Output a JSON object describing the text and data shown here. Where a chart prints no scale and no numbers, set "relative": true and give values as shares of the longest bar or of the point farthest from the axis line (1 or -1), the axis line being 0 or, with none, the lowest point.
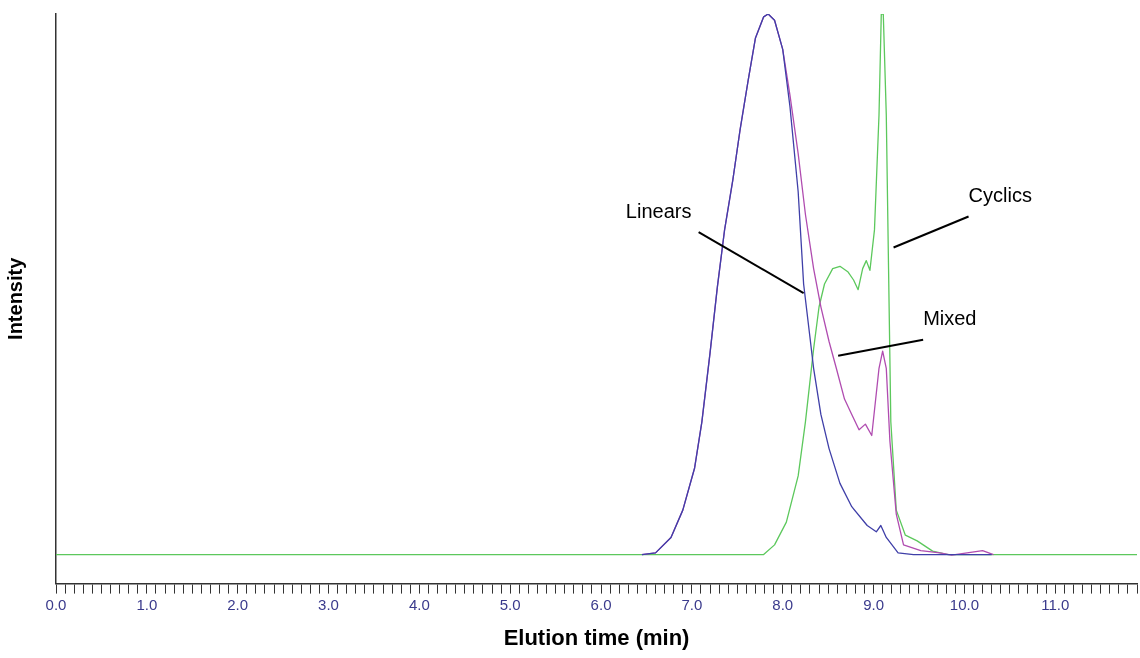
{
  "chart_data": {
    "type": "line",
    "xlabel": "Elution time (min)",
    "ylabel": "Intensity",
    "relative": true,
    "tick_labels": "x",
    "grid": false,
    "xlim": [
      0,
      11.9
    ],
    "xticks": [
      {
        "value": 0,
        "label": "0.0"
      },
      {
        "value": 0.1,
        "label": null
      },
      {
        "value": 0.2,
        "label": null
      },
      {
        "value": 0.3,
        "label": null
      },
      {
        "value": 0.4,
        "label": null
      },
      {
        "value": 0.5,
        "label": null
      },
      {
        "value": 0.6,
        "label": null
      },
      {
        "value": 0.7,
        "label": null
      },
      {
        "value": 0.8,
        "label": null
      },
      {
        "value": 0.9,
        "label": null
      },
      {
        "value": 1,
        "label": "1.0"
      },
      {
        "value": 1.1,
        "label": null
      },
      {
        "value": 1.2,
        "label": null
      },
      {
        "value": 1.3,
        "label": null
      },
      {
        "value": 1.4,
        "label": null
      },
      {
        "value": 1.5,
        "label": null
      },
      {
        "value": 1.6,
        "label": null
      },
      {
        "value": 1.7,
        "label": null
      },
      {
        "value": 1.8,
        "label": null
      },
      {
        "value": 1.9,
        "label": null
      },
      {
        "value": 2,
        "label": "2.0"
      },
      {
        "value": 2.1,
        "label": null
      },
      {
        "value": 2.2,
        "label": null
      },
      {
        "value": 2.3,
        "label": null
      },
      {
        "value": 2.4,
        "label": null
      },
      {
        "value": 2.5,
        "label": null
      },
      {
        "value": 2.6,
        "label": null
      },
      {
        "value": 2.7,
        "label": null
      },
      {
        "value": 2.8,
        "label": null
      },
      {
        "value": 2.9,
        "label": null
      },
      {
        "value": 3,
        "label": "3.0"
      },
      {
        "value": 3.1,
        "label": null
      },
      {
        "value": 3.2,
        "label": null
      },
      {
        "value": 3.3,
        "label": null
      },
      {
        "value": 3.4,
        "label": null
      },
      {
        "value": 3.5,
        "label": null
      },
      {
        "value": 3.6,
        "label": null
      },
      {
        "value": 3.7,
        "label": null
      },
      {
        "value": 3.8,
        "label": null
      },
      {
        "value": 3.9,
        "label": null
      },
      {
        "value": 4,
        "label": "4.0"
      },
      {
        "value": 4.1,
        "label": null
      },
      {
        "value": 4.2,
        "label": null
      },
      {
        "value": 4.3,
        "label": null
      },
      {
        "value": 4.4,
        "label": null
      },
      {
        "value": 4.5,
        "label": null
      },
      {
        "value": 4.6,
        "label": null
      },
      {
        "value": 4.7,
        "label": null
      },
      {
        "value": 4.8,
        "label": null
      },
      {
        "value": 4.9,
        "label": null
      },
      {
        "value": 5,
        "label": "5.0"
      },
      {
        "value": 5.1,
        "label": null
      },
      {
        "value": 5.2,
        "label": null
      },
      {
        "value": 5.3,
        "label": null
      },
      {
        "value": 5.4,
        "label": null
      },
      {
        "value": 5.5,
        "label": null
      },
      {
        "value": 5.6,
        "label": null
      },
      {
        "value": 5.7,
        "label": null
      },
      {
        "value": 5.8,
        "label": null
      },
      {
        "value": 5.9,
        "label": null
      },
      {
        "value": 6,
        "label": "6.0"
      },
      {
        "value": 6.1,
        "label": null
      },
      {
        "value": 6.2,
        "label": null
      },
      {
        "value": 6.3,
        "label": null
      },
      {
        "value": 6.4,
        "label": null
      },
      {
        "value": 6.5,
        "label": null
      },
      {
        "value": 6.6,
        "label": null
      },
      {
        "value": 6.7,
        "label": null
      },
      {
        "value": 6.8,
        "label": null
      },
      {
        "value": 6.9,
        "label": null
      },
      {
        "value": 7,
        "label": "7.0"
      },
      {
        "value": 7.1,
        "label": null
      },
      {
        "value": 7.2,
        "label": null
      },
      {
        "value": 7.3,
        "label": null
      },
      {
        "value": 7.4,
        "label": null
      },
      {
        "value": 7.5,
        "label": null
      },
      {
        "value": 7.6,
        "label": null
      },
      {
        "value": 7.7,
        "label": null
      },
      {
        "value": 7.8,
        "label": null
      },
      {
        "value": 7.9,
        "label": null
      },
      {
        "value": 8,
        "label": "8.0"
      },
      {
        "value": 8.1,
        "label": null
      },
      {
        "value": 8.2,
        "label": null
      },
      {
        "value": 8.3,
        "label": null
      },
      {
        "value": 8.4,
        "label": null
      },
      {
        "value": 8.5,
        "label": null
      },
      {
        "value": 8.6,
        "label": null
      },
      {
        "value": 8.7,
        "label": null
      },
      {
        "value": 8.8,
        "label": null
      },
      {
        "value": 8.9,
        "label": null
      },
      {
        "value": 9,
        "label": "9.0"
      },
      {
        "value": 9.1,
        "label": null
      },
      {
        "value": 9.2,
        "label": null
      },
      {
        "value": 9.3,
        "label": null
      },
      {
        "value": 9.4,
        "label": null
      },
      {
        "value": 9.5,
        "label": null
      },
      {
        "value": 9.6,
        "label": null
      },
      {
        "value": 9.7,
        "label": null
      },
      {
        "value": 9.8,
        "label": null
      },
      {
        "value": 9.9,
        "label": null
      },
      {
        "value": 10,
        "label": "10.0"
      },
      {
        "value": 10.1,
        "label": null
      },
      {
        "value": 10.2,
        "label": null
      },
      {
        "value": 10.3,
        "label": null
      },
      {
        "value": 10.4,
        "label": null
      },
      {
        "value": 10.5,
        "label": null
      },
      {
        "value": 10.6,
        "label": null
      },
      {
        "value": 10.7,
        "label": null
      },
      {
        "value": 10.8,
        "label": null
      },
      {
        "value": 10.9,
        "label": null
      },
      {
        "value": 11,
        "label": "11.0"
      },
      {
        "value": 11.1,
        "label": null
      },
      {
        "value": 11.2,
        "label": null
      },
      {
        "value": 11.3,
        "label": null
      },
      {
        "value": 11.4,
        "label": null
      },
      {
        "value": 11.5,
        "label": null
      },
      {
        "value": 11.6,
        "label": null
      },
      {
        "value": 11.7,
        "label": null
      },
      {
        "value": 11.8,
        "label": null
      },
      {
        "value": 11.9,
        "label": null
      }
    ],
    "series": [
      {
        "color": "#5cc85c",
        "x": [
          0,
          7.79,
          7.91,
          8.04,
          8.17,
          8.25,
          8.34,
          8.4,
          8.46,
          8.55,
          8.63,
          8.72,
          8.78,
          8.83,
          8.88,
          8.92,
          8.96,
          9.01,
          9.06,
          9.085,
          9.107,
          9.14,
          9.165,
          9.19,
          9.25,
          9.35,
          9.48,
          9.65,
          9.82,
          11.9
        ],
        "values": [
          0.051,
          0.051,
          0.068,
          0.108,
          0.189,
          0.284,
          0.412,
          0.486,
          0.526,
          0.553,
          0.557,
          0.547,
          0.533,
          0.516,
          0.553,
          0.567,
          0.55,
          0.621,
          0.823,
          1.0,
          1.0,
          0.823,
          0.553,
          0.284,
          0.129,
          0.085,
          0.075,
          0.057,
          0.051,
          0.051
        ]
      },
      {
        "color": "#b04cb0",
        "x": [
          6.45,
          6.6,
          6.77,
          6.9,
          7.03,
          7.11,
          7.2,
          7.28,
          7.36,
          7.45,
          7.53,
          7.62,
          7.7,
          7.79,
          7.84,
          7.91,
          8.0,
          8.08,
          8.17,
          8.25,
          8.34,
          8.42,
          8.51,
          8.59,
          8.68,
          8.76,
          8.84,
          8.91,
          8.98,
          9.06,
          9.1,
          9.14,
          9.18,
          9.25,
          9.33,
          9.52,
          9.73,
          9.86,
          10.2,
          10.32
        ],
        "values": [
          0.051,
          0.054,
          0.081,
          0.129,
          0.203,
          0.284,
          0.405,
          0.52,
          0.621,
          0.708,
          0.796,
          0.884,
          0.958,
          0.995,
          1.0,
          0.989,
          0.938,
          0.857,
          0.755,
          0.648,
          0.553,
          0.486,
          0.425,
          0.378,
          0.324,
          0.297,
          0.27,
          0.28,
          0.26,
          0.378,
          0.408,
          0.378,
          0.25,
          0.122,
          0.068,
          0.058,
          0.054,
          0.05,
          0.058,
          0.051
        ]
      },
      {
        "color": "#3f3fa8",
        "x": [
          6.45,
          6.6,
          6.77,
          6.9,
          7.03,
          7.11,
          7.2,
          7.28,
          7.36,
          7.45,
          7.53,
          7.62,
          7.7,
          7.79,
          7.84,
          7.91,
          8.0,
          8.08,
          8.17,
          8.23,
          8.3,
          8.34,
          8.42,
          8.51,
          8.63,
          8.76,
          8.93,
          9.03,
          9.08,
          9.14,
          9.27,
          9.44,
          10.3
        ],
        "values": [
          0.051,
          0.054,
          0.081,
          0.129,
          0.203,
          0.284,
          0.405,
          0.52,
          0.621,
          0.708,
          0.796,
          0.884,
          0.958,
          0.995,
          1.0,
          0.989,
          0.938,
          0.837,
          0.688,
          0.526,
          0.432,
          0.378,
          0.297,
          0.237,
          0.176,
          0.135,
          0.102,
          0.091,
          0.102,
          0.081,
          0.054,
          0.051,
          0.051
        ]
      }
    ],
    "annotations": [
      {
        "text": "Linears",
        "x": 8.23,
        "y": 0.51
      },
      {
        "text": "Cyclics",
        "x": 9.22,
        "y": 0.59
      },
      {
        "text": "Mixed",
        "x": 8.61,
        "y": 0.4
      }
    ]
  }
}
